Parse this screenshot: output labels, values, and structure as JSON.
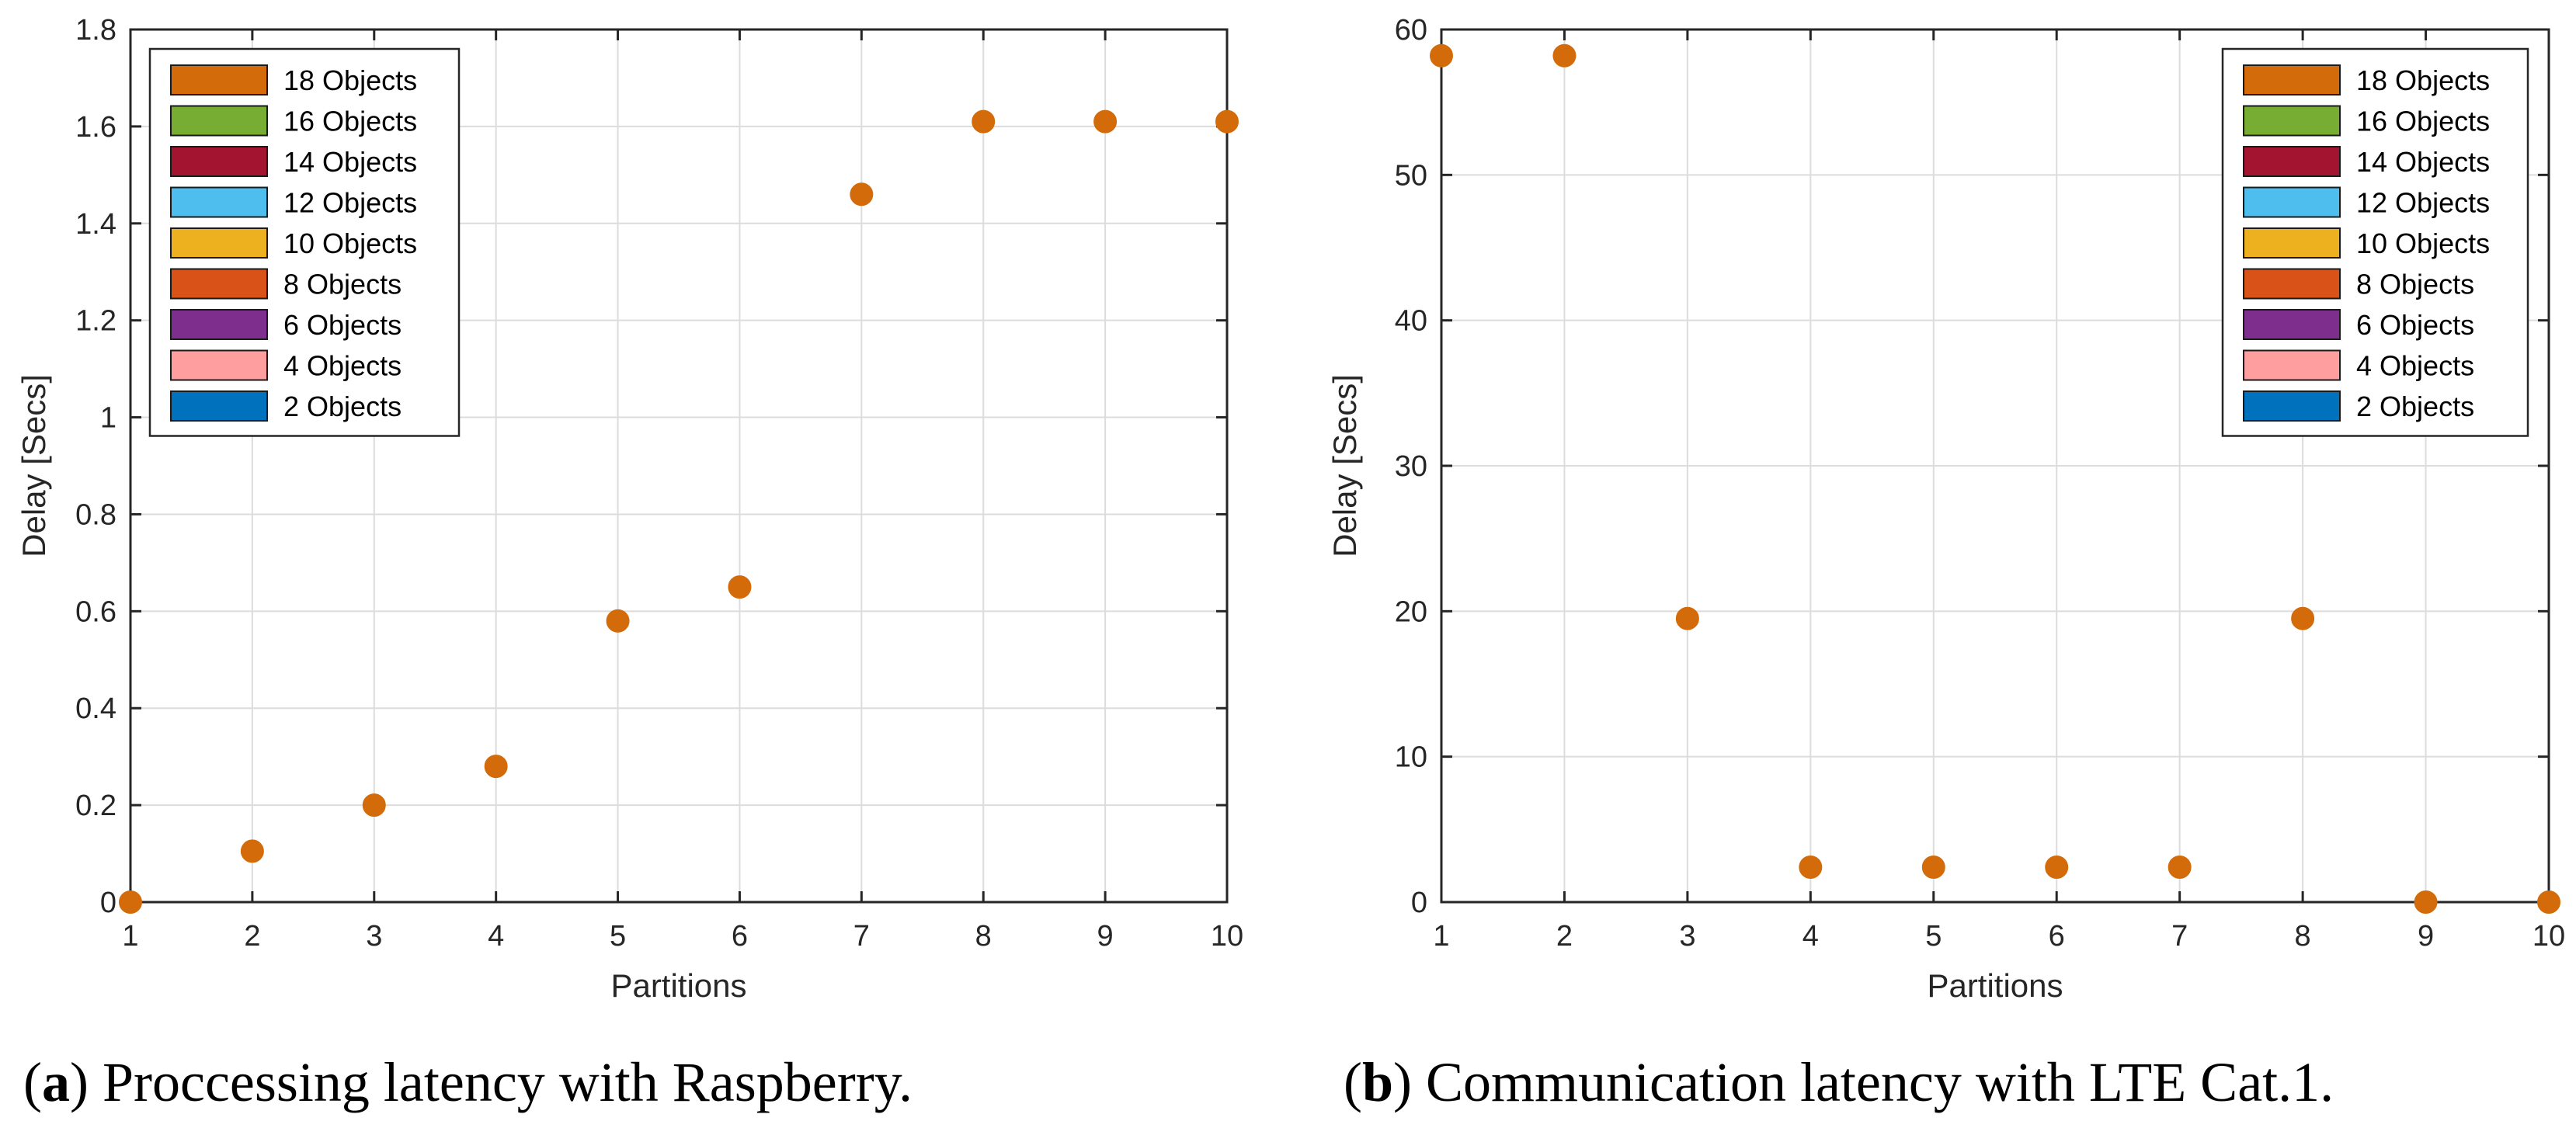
{
  "chart_data": [
    {
      "type": "scatter",
      "caption": {
        "label": "a",
        "text": ") Proccessing latency with Raspberry."
      },
      "xlabel": "Partitions",
      "ylabel": "Delay [Secs]",
      "xlim": [
        1,
        10
      ],
      "ylim": [
        0,
        1.8
      ],
      "xticks": [
        "1",
        "2",
        "3",
        "4",
        "5",
        "6",
        "7",
        "8",
        "9",
        "10"
      ],
      "yticks": [
        "0",
        "0.2",
        "0.4",
        "0.6",
        "0.8",
        "1",
        "1.2",
        "1.4",
        "1.6",
        "1.8"
      ],
      "grid": true,
      "legend_position": "top-left",
      "x": [
        1,
        2,
        3,
        4,
        5,
        6,
        7,
        8,
        9,
        10
      ],
      "y": [
        0,
        0.105,
        0.2,
        0.28,
        0.58,
        0.65,
        1.46,
        1.61,
        1.61,
        1.61
      ],
      "point_color": "#D36B0A"
    },
    {
      "type": "scatter",
      "caption": {
        "label": "b",
        "text": ") Communication latency with LTE Cat.1."
      },
      "xlabel": "Partitions",
      "ylabel": "Delay [Secs]",
      "xlim": [
        1,
        10
      ],
      "ylim": [
        0,
        60
      ],
      "xticks": [
        "1",
        "2",
        "3",
        "4",
        "5",
        "6",
        "7",
        "8",
        "9",
        "10"
      ],
      "yticks": [
        "0",
        "10",
        "20",
        "30",
        "40",
        "50",
        "60"
      ],
      "grid": true,
      "legend_position": "top-right",
      "x": [
        1,
        2,
        3,
        4,
        5,
        6,
        7,
        8,
        9,
        10
      ],
      "y": [
        58.2,
        58.2,
        19.5,
        2.4,
        2.4,
        2.4,
        2.4,
        19.5,
        0,
        0
      ],
      "point_color": "#D36B0A"
    }
  ],
  "legend": [
    {
      "label": "18 Objects",
      "color": "#D36B0A"
    },
    {
      "label": "16 Objects",
      "color": "#76AD32"
    },
    {
      "label": "14 Objects",
      "color": "#A2142F"
    },
    {
      "label": "12 Objects",
      "color": "#4DBEEE"
    },
    {
      "label": "10 Objects",
      "color": "#EDB120"
    },
    {
      "label": "8 Objects",
      "color": "#D95319"
    },
    {
      "label": "6 Objects",
      "color": "#7E2F8E"
    },
    {
      "label": "4 Objects",
      "color": "#FF9E9E"
    },
    {
      "label": "2 Objects",
      "color": "#0072BD"
    }
  ],
  "colors": {
    "axis": "#262626",
    "grid": "#DCDCDC"
  }
}
